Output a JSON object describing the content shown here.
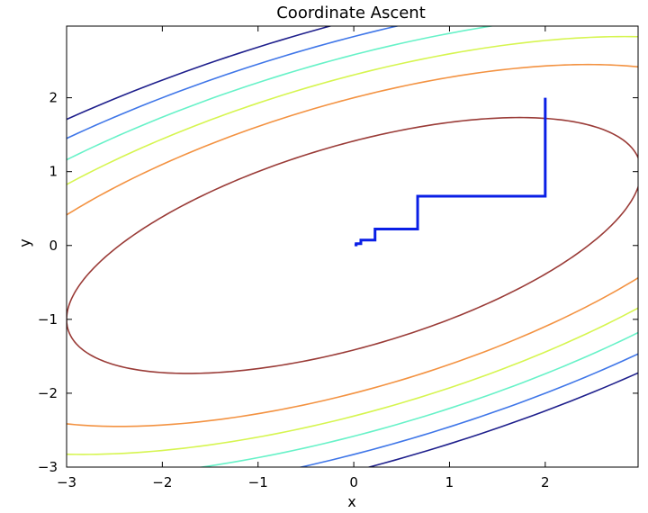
{
  "chart_data": {
    "type": "contour",
    "title": "Coordinate Ascent",
    "xlabel": "x",
    "ylabel": "y",
    "xlim": [
      -3,
      2.97
    ],
    "ylim": [
      -3,
      2.97
    ],
    "grid": false,
    "x_ticks": [
      {
        "value": -3,
        "label": "−3"
      },
      {
        "value": -2,
        "label": "−2"
      },
      {
        "value": -1,
        "label": "−1"
      },
      {
        "value": 0,
        "label": "0"
      },
      {
        "value": 1,
        "label": "1"
      },
      {
        "value": 2,
        "label": "2"
      }
    ],
    "y_ticks": [
      {
        "value": -3,
        "label": "−3"
      },
      {
        "value": -2,
        "label": "−2"
      },
      {
        "value": -1,
        "label": "−1"
      },
      {
        "value": 0,
        "label": "0"
      },
      {
        "value": 1,
        "label": "1"
      },
      {
        "value": 2,
        "label": "2"
      }
    ],
    "function": "f(x,y) = x^2 + 3y^2 - 2xy",
    "contour_levels": [
      {
        "level": 6,
        "color": "#9a3b37"
      },
      {
        "level": 12,
        "color": "#f39241"
      },
      {
        "level": 16,
        "color": "#d6f550"
      },
      {
        "level": 20,
        "color": "#67f2c8"
      },
      {
        "level": 24,
        "color": "#3f76e8"
      },
      {
        "level": 28,
        "color": "#1e1f8c"
      }
    ],
    "series": [
      {
        "color": "#0a1fe6",
        "points": [
          [
            2.0,
            2.0
          ],
          [
            2.0,
            0.667
          ],
          [
            0.667,
            0.667
          ],
          [
            0.667,
            0.222
          ],
          [
            0.222,
            0.222
          ],
          [
            0.222,
            0.074
          ],
          [
            0.074,
            0.074
          ],
          [
            0.074,
            0.025
          ],
          [
            0.025,
            0.025
          ],
          [
            0.025,
            0.008
          ],
          [
            0.008,
            0.008
          ]
        ]
      }
    ]
  }
}
